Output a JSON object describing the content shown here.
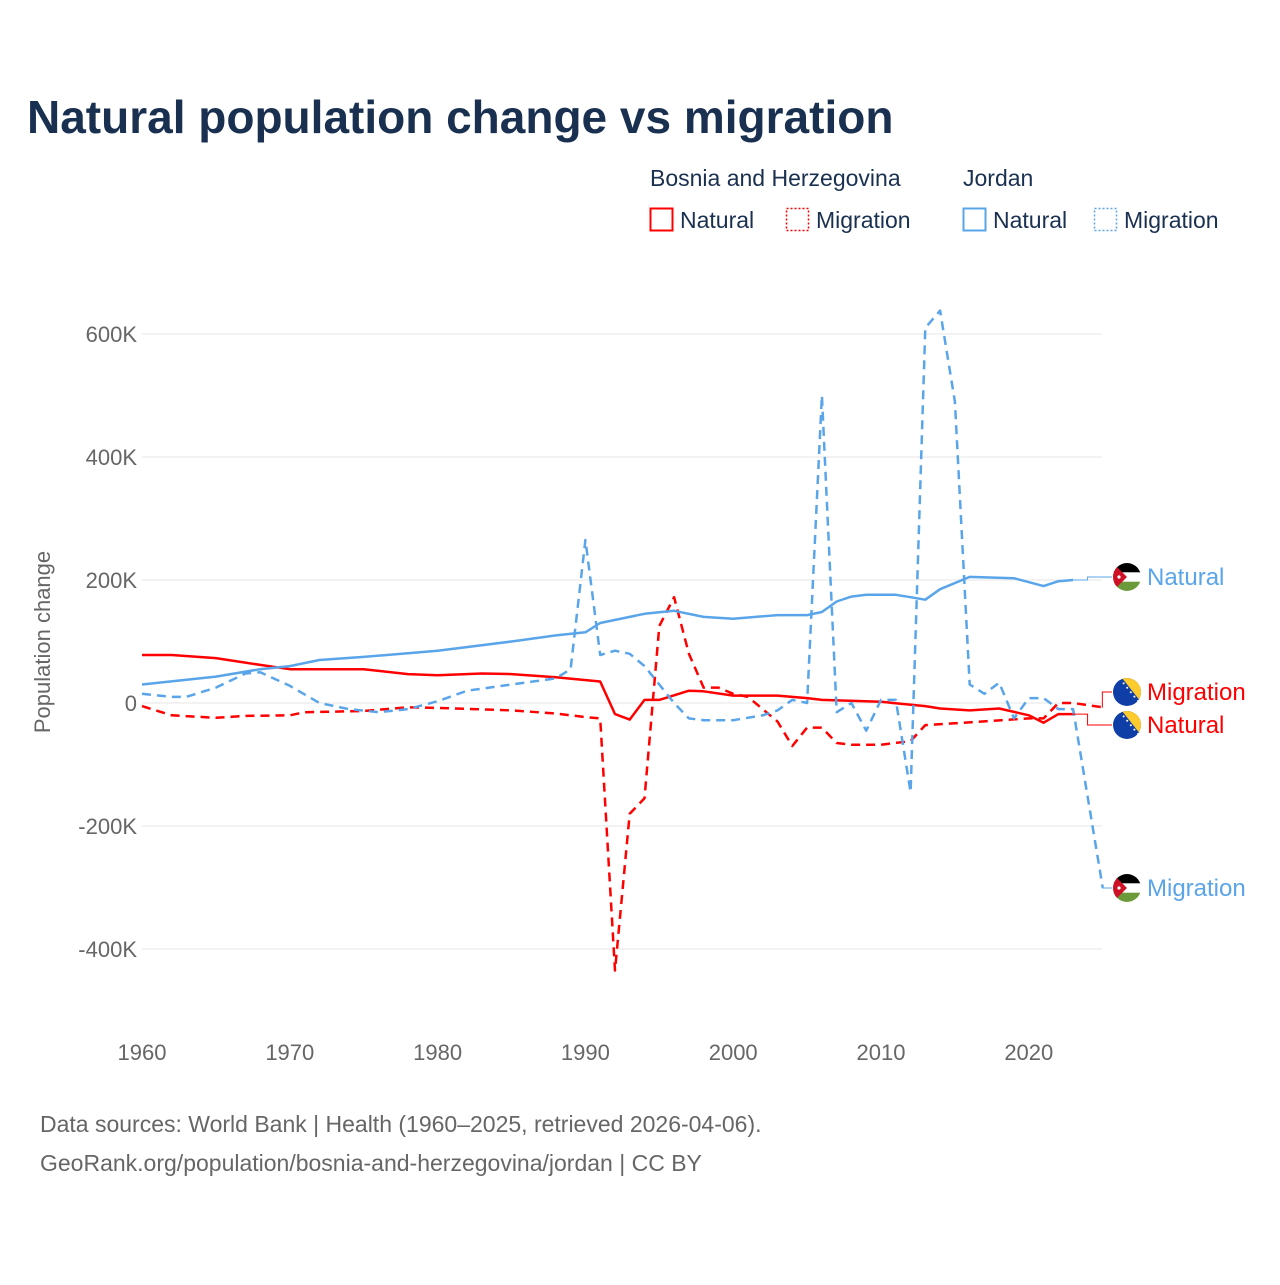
{
  "chart_data": {
    "type": "line",
    "title": "Natural population change vs migration",
    "ylabel": "Population change",
    "xlabel": "",
    "xlim": [
      1960,
      2025
    ],
    "ylim": [
      -500000,
      650000
    ],
    "x_ticks": [
      1960,
      1970,
      1980,
      1990,
      2000,
      2010,
      2020
    ],
    "x_tick_labels": [
      "1960",
      "1970",
      "1980",
      "1990",
      "2000",
      "2010",
      "2020"
    ],
    "y_ticks": [
      -400000,
      -200000,
      0,
      200000,
      400000,
      600000
    ],
    "y_tick_labels": [
      "-400K",
      "-200K",
      "0",
      "200K",
      "400K",
      "600K"
    ],
    "grid": true,
    "legend": {
      "placement": "top-right",
      "groups": [
        {
          "name": "Bosnia and Herzegovina",
          "color": "#ff0000",
          "items": [
            "Natural",
            "Migration"
          ]
        },
        {
          "name": "Jordan",
          "color": "#5aa5ea",
          "items": [
            "Natural",
            "Migration"
          ]
        }
      ]
    },
    "series": [
      {
        "name": "Natural",
        "country": "Bosnia and Herzegovina",
        "color": "#ff0000",
        "dash": false,
        "end_label": "Natural",
        "flag": "bosnia",
        "points": [
          [
            1960,
            78
          ],
          [
            1962,
            78
          ],
          [
            1965,
            73
          ],
          [
            1968,
            62
          ],
          [
            1970,
            55
          ],
          [
            1975,
            55
          ],
          [
            1978,
            47
          ],
          [
            1980,
            45
          ],
          [
            1983,
            48
          ],
          [
            1985,
            47
          ],
          [
            1988,
            42
          ],
          [
            1991,
            35
          ],
          [
            1992,
            -18
          ],
          [
            1993,
            -27
          ],
          [
            1994,
            5
          ],
          [
            1995,
            5
          ],
          [
            1997,
            20
          ],
          [
            1998,
            19
          ],
          [
            2000,
            12
          ],
          [
            2003,
            12
          ],
          [
            2005,
            8
          ],
          [
            2006,
            5
          ],
          [
            2010,
            2
          ],
          [
            2013,
            -5
          ],
          [
            2014,
            -9
          ],
          [
            2016,
            -12
          ],
          [
            2018,
            -9
          ],
          [
            2020,
            -20
          ],
          [
            2021,
            -32
          ],
          [
            2022,
            -18
          ],
          [
            2023,
            -18
          ]
        ]
      },
      {
        "name": "Migration",
        "country": "Bosnia and Herzegovina",
        "color": "#ff0000",
        "dash": true,
        "end_label": "Migration",
        "flag": "bosnia",
        "points": [
          [
            1960,
            -5
          ],
          [
            1962,
            -20
          ],
          [
            1965,
            -24
          ],
          [
            1967,
            -21
          ],
          [
            1970,
            -20
          ],
          [
            1971,
            -15
          ],
          [
            1975,
            -13
          ],
          [
            1978,
            -7
          ],
          [
            1980,
            -8
          ],
          [
            1985,
            -12
          ],
          [
            1988,
            -17
          ],
          [
            1990,
            -23
          ],
          [
            1991,
            -25
          ],
          [
            1992,
            -435
          ],
          [
            1993,
            -180
          ],
          [
            1994,
            -155
          ],
          [
            1995,
            125
          ],
          [
            1996,
            172
          ],
          [
            1997,
            80
          ],
          [
            1998,
            25
          ],
          [
            1999,
            25
          ],
          [
            2000,
            15
          ],
          [
            2001,
            10
          ],
          [
            2003,
            -30
          ],
          [
            2004,
            -70
          ],
          [
            2005,
            -40
          ],
          [
            2006,
            -40
          ],
          [
            2007,
            -65
          ],
          [
            2008,
            -68
          ],
          [
            2010,
            -68
          ],
          [
            2012,
            -62
          ],
          [
            2013,
            -36
          ],
          [
            2015,
            -33
          ],
          [
            2020,
            -25
          ],
          [
            2021,
            -25
          ],
          [
            2022,
            0
          ],
          [
            2023,
            0
          ],
          [
            2025,
            -7
          ]
        ]
      },
      {
        "name": "Natural",
        "country": "Jordan",
        "color": "#5aa5ea",
        "dash": false,
        "end_label": "Natural",
        "flag": "jordan",
        "points": [
          [
            1960,
            30
          ],
          [
            1965,
            43
          ],
          [
            1968,
            55
          ],
          [
            1970,
            60
          ],
          [
            1972,
            70
          ],
          [
            1975,
            75
          ],
          [
            1980,
            85
          ],
          [
            1985,
            100
          ],
          [
            1988,
            110
          ],
          [
            1990,
            115
          ],
          [
            1991,
            130
          ],
          [
            1994,
            145
          ],
          [
            1996,
            150
          ],
          [
            1998,
            140
          ],
          [
            2000,
            137
          ],
          [
            2003,
            143
          ],
          [
            2005,
            143
          ],
          [
            2006,
            148
          ],
          [
            2007,
            165
          ],
          [
            2008,
            173
          ],
          [
            2009,
            176
          ],
          [
            2011,
            176
          ],
          [
            2012,
            172
          ],
          [
            2013,
            168
          ],
          [
            2014,
            185
          ],
          [
            2016,
            205
          ],
          [
            2019,
            203
          ],
          [
            2021,
            190
          ],
          [
            2022,
            198
          ],
          [
            2023,
            200
          ]
        ]
      },
      {
        "name": "Migration",
        "country": "Jordan",
        "color": "#5aa5ea",
        "dash": true,
        "end_label": "Migration",
        "flag": "jordan",
        "points": [
          [
            1960,
            15
          ],
          [
            1962,
            10
          ],
          [
            1963,
            10
          ],
          [
            1965,
            25
          ],
          [
            1967,
            48
          ],
          [
            1968,
            50
          ],
          [
            1970,
            28
          ],
          [
            1972,
            0
          ],
          [
            1974,
            -10
          ],
          [
            1976,
            -15
          ],
          [
            1978,
            -10
          ],
          [
            1980,
            3
          ],
          [
            1982,
            20
          ],
          [
            1985,
            30
          ],
          [
            1988,
            40
          ],
          [
            1989,
            55
          ],
          [
            1990,
            265
          ],
          [
            1991,
            78
          ],
          [
            1992,
            85
          ],
          [
            1993,
            80
          ],
          [
            1994,
            60
          ],
          [
            1995,
            30
          ],
          [
            1996,
            0
          ],
          [
            1997,
            -25
          ],
          [
            1998,
            -28
          ],
          [
            2000,
            -28
          ],
          [
            2002,
            -20
          ],
          [
            2003,
            -12
          ],
          [
            2004,
            5
          ],
          [
            2005,
            0
          ],
          [
            2006,
            500
          ],
          [
            2007,
            -15
          ],
          [
            2008,
            0
          ],
          [
            2009,
            -45
          ],
          [
            2010,
            5
          ],
          [
            2011,
            5
          ],
          [
            2012,
            -145
          ],
          [
            2013,
            610
          ],
          [
            2014,
            638
          ],
          [
            2015,
            490
          ],
          [
            2016,
            30
          ],
          [
            2017,
            15
          ],
          [
            2018,
            33
          ],
          [
            2019,
            -25
          ],
          [
            2020,
            8
          ],
          [
            2021,
            8
          ],
          [
            2022,
            -10
          ],
          [
            2023,
            -10
          ],
          [
            2025,
            -300
          ]
        ]
      }
    ],
    "value_unit": "thousands"
  },
  "footer": {
    "source": "Data sources: World Bank | Health (1960–2025, retrieved 2026-04-06).",
    "credit": "GeoRank.org/population/bosnia-and-herzegovina/jordan | CC BY"
  }
}
